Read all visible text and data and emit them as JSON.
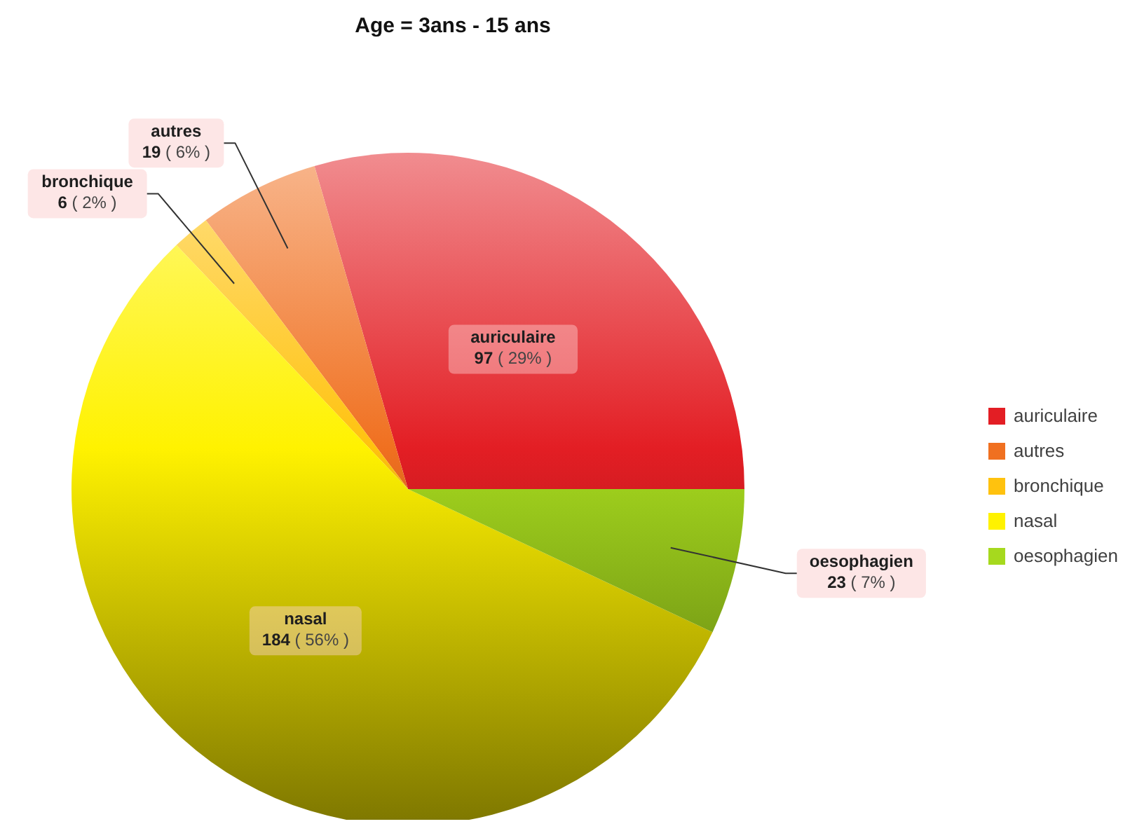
{
  "chart_data": {
    "type": "pie",
    "title": "Age = 3ans - 15 ans",
    "categories": [
      "auriculaire",
      "autres",
      "bronchique",
      "nasal",
      "oesophagien"
    ],
    "values": [
      97,
      19,
      6,
      184,
      23
    ],
    "colors": [
      "#e31e24",
      "#f07020",
      "#ffc20e",
      "#fff200",
      "#a6d91e"
    ],
    "value_labels": [
      "97 ( 29% )",
      "19 ( 6% )",
      "6 ( 2% )",
      "184 ( 56% )",
      "23 ( 7% )"
    ],
    "legend": "right"
  }
}
